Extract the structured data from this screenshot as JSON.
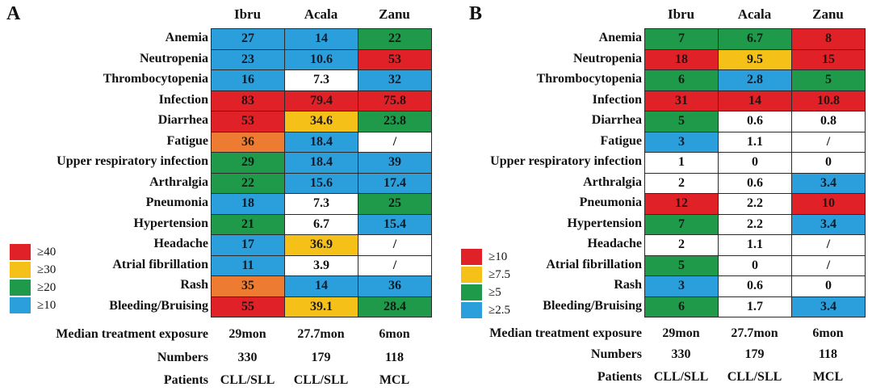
{
  "colors": {
    "red": "#e02128",
    "yellow": "#f5c018",
    "green": "#1e9a4a",
    "blue": "#2a9fdb",
    "orange": "#ee7b32",
    "white": "#ffffff"
  },
  "chart_data": [
    {
      "type": "table",
      "panel": "A",
      "columns": [
        "Ibru",
        "Acala",
        "Zanu"
      ],
      "rows": [
        {
          "label": "Anemia",
          "values": [
            "27",
            "14",
            "22"
          ],
          "colors": [
            "blue",
            "blue",
            "green"
          ]
        },
        {
          "label": "Neutropenia",
          "values": [
            "23",
            "10.6",
            "53"
          ],
          "colors": [
            "blue",
            "blue",
            "red"
          ]
        },
        {
          "label": "Thrombocytopenia",
          "values": [
            "16",
            "7.3",
            "32"
          ],
          "colors": [
            "blue",
            "white",
            "blue"
          ]
        },
        {
          "label": "Infection",
          "values": [
            "83",
            "79.4",
            "75.8"
          ],
          "colors": [
            "red",
            "red",
            "red"
          ]
        },
        {
          "label": "Diarrhea",
          "values": [
            "53",
            "34.6",
            "23.8"
          ],
          "colors": [
            "red",
            "yellow",
            "green"
          ]
        },
        {
          "label": "Fatigue",
          "values": [
            "36",
            "18.4",
            "/"
          ],
          "colors": [
            "orange",
            "blue",
            "white"
          ]
        },
        {
          "label": "Upper respiratory infection",
          "values": [
            "29",
            "18.4",
            "39"
          ],
          "colors": [
            "green",
            "blue",
            "blue"
          ]
        },
        {
          "label": "Arthralgia",
          "values": [
            "22",
            "15.6",
            "17.4"
          ],
          "colors": [
            "green",
            "blue",
            "blue"
          ]
        },
        {
          "label": "Pneumonia",
          "values": [
            "18",
            "7.3",
            "25"
          ],
          "colors": [
            "blue",
            "white",
            "green"
          ]
        },
        {
          "label": "Hypertension",
          "values": [
            "21",
            "6.7",
            "15.4"
          ],
          "colors": [
            "green",
            "white",
            "blue"
          ]
        },
        {
          "label": "Headache",
          "values": [
            "17",
            "36.9",
            "/"
          ],
          "colors": [
            "blue",
            "yellow",
            "white"
          ]
        },
        {
          "label": "Atrial fibrillation",
          "values": [
            "11",
            "3.9",
            "/"
          ],
          "colors": [
            "blue",
            "white",
            "white"
          ]
        },
        {
          "label": "Rash",
          "values": [
            "35",
            "14",
            "36"
          ],
          "colors": [
            "orange",
            "blue",
            "blue"
          ]
        },
        {
          "label": "Bleeding/Bruising",
          "values": [
            "55",
            "39.1",
            "28.4"
          ],
          "colors": [
            "red",
            "yellow",
            "green"
          ]
        }
      ],
      "legend": [
        {
          "label": "≥40",
          "color": "red"
        },
        {
          "label": "≥30",
          "color": "yellow"
        },
        {
          "label": "≥20",
          "color": "green"
        },
        {
          "label": "≥10",
          "color": "blue"
        }
      ],
      "footer": [
        {
          "label": "Median treatment exposure",
          "values": [
            "29mon",
            "27.7mon",
            "6mon"
          ]
        },
        {
          "label": "Numbers",
          "values": [
            "330",
            "179",
            "118"
          ]
        },
        {
          "label": "Patients",
          "values": [
            "CLL/SLL",
            "CLL/SLL",
            "MCL"
          ]
        }
      ]
    },
    {
      "type": "table",
      "panel": "B",
      "columns": [
        "Ibru",
        "Acala",
        "Zanu"
      ],
      "rows": [
        {
          "label": "Anemia",
          "values": [
            "7",
            "6.7",
            "8"
          ],
          "colors": [
            "green",
            "green",
            "red"
          ]
        },
        {
          "label": "Neutropenia",
          "values": [
            "18",
            "9.5",
            "15"
          ],
          "colors": [
            "red",
            "yellow",
            "red"
          ]
        },
        {
          "label": "Thrombocytopenia",
          "values": [
            "6",
            "2.8",
            "5"
          ],
          "colors": [
            "green",
            "blue",
            "green"
          ]
        },
        {
          "label": "Infection",
          "values": [
            "31",
            "14",
            "10.8"
          ],
          "colors": [
            "red",
            "red",
            "red"
          ]
        },
        {
          "label": "Diarrhea",
          "values": [
            "5",
            "0.6",
            "0.8"
          ],
          "colors": [
            "green",
            "white",
            "white"
          ]
        },
        {
          "label": "Fatigue",
          "values": [
            "3",
            "1.1",
            "/"
          ],
          "colors": [
            "blue",
            "white",
            "white"
          ]
        },
        {
          "label": "Upper respiratory infection",
          "values": [
            "1",
            "0",
            "0"
          ],
          "colors": [
            "white",
            "white",
            "white"
          ]
        },
        {
          "label": "Arthralgia",
          "values": [
            "2",
            "0.6",
            "3.4"
          ],
          "colors": [
            "white",
            "white",
            "blue"
          ]
        },
        {
          "label": "Pneumonia",
          "values": [
            "12",
            "2.2",
            "10"
          ],
          "colors": [
            "red",
            "white",
            "red"
          ]
        },
        {
          "label": "Hypertension",
          "values": [
            "7",
            "2.2",
            "3.4"
          ],
          "colors": [
            "green",
            "white",
            "blue"
          ]
        },
        {
          "label": "Headache",
          "values": [
            "2",
            "1.1",
            "/"
          ],
          "colors": [
            "white",
            "white",
            "white"
          ]
        },
        {
          "label": "Atrial fibrillation",
          "values": [
            "5",
            "0",
            "/"
          ],
          "colors": [
            "green",
            "white",
            "white"
          ]
        },
        {
          "label": "Rash",
          "values": [
            "3",
            "0.6",
            "0"
          ],
          "colors": [
            "blue",
            "white",
            "white"
          ]
        },
        {
          "label": "Bleeding/Bruising",
          "values": [
            "6",
            "1.7",
            "3.4"
          ],
          "colors": [
            "green",
            "white",
            "blue"
          ]
        }
      ],
      "legend": [
        {
          "label": "≥10",
          "color": "red"
        },
        {
          "label": "≥7.5",
          "color": "yellow"
        },
        {
          "label": "≥5",
          "color": "green"
        },
        {
          "label": "≥2.5",
          "color": "blue"
        }
      ],
      "footer": [
        {
          "label": "Median treatment exposure",
          "values": [
            "29mon",
            "27.7mon",
            "6mon"
          ]
        },
        {
          "label": "Numbers",
          "values": [
            "330",
            "179",
            "118"
          ]
        },
        {
          "label": "Patients",
          "values": [
            "CLL/SLL",
            "CLL/SLL",
            "MCL"
          ]
        }
      ]
    }
  ],
  "panels": {
    "A": {
      "label": "A"
    },
    "B": {
      "label": "B"
    }
  }
}
